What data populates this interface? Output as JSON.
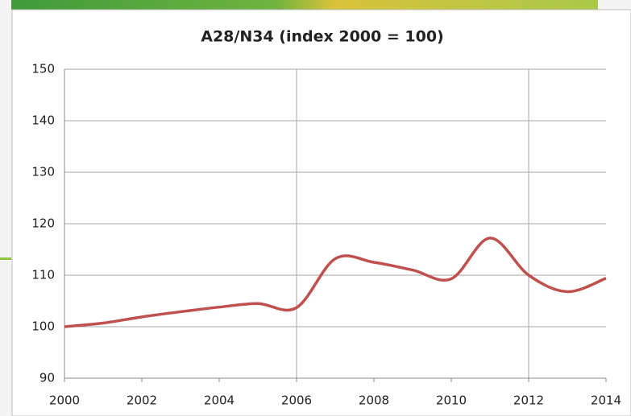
{
  "chart_data": {
    "type": "line",
    "title": "A28/N34 (index 2000 = 100)",
    "x": [
      2000,
      2001,
      2002,
      2003,
      2004,
      2005,
      2006,
      2007,
      2008,
      2009,
      2010,
      2011,
      2012,
      2013,
      2014
    ],
    "series": [
      {
        "name": "A28/N34",
        "color": "#c0504d",
        "values": [
          100,
          100.7,
          101.9,
          102.9,
          103.8,
          104.5,
          103.7,
          113.2,
          112.5,
          111,
          109.3,
          117.2,
          110,
          106.8,
          109.4
        ]
      }
    ],
    "xlim": [
      2000,
      2014
    ],
    "xticks": [
      2000,
      2002,
      2004,
      2006,
      2008,
      2010,
      2012,
      2014
    ],
    "ylim": [
      90,
      150
    ],
    "yticks": [
      90,
      100,
      110,
      120,
      130,
      140,
      150
    ],
    "grid": true,
    "xgrid": [
      2006,
      2012
    ]
  }
}
